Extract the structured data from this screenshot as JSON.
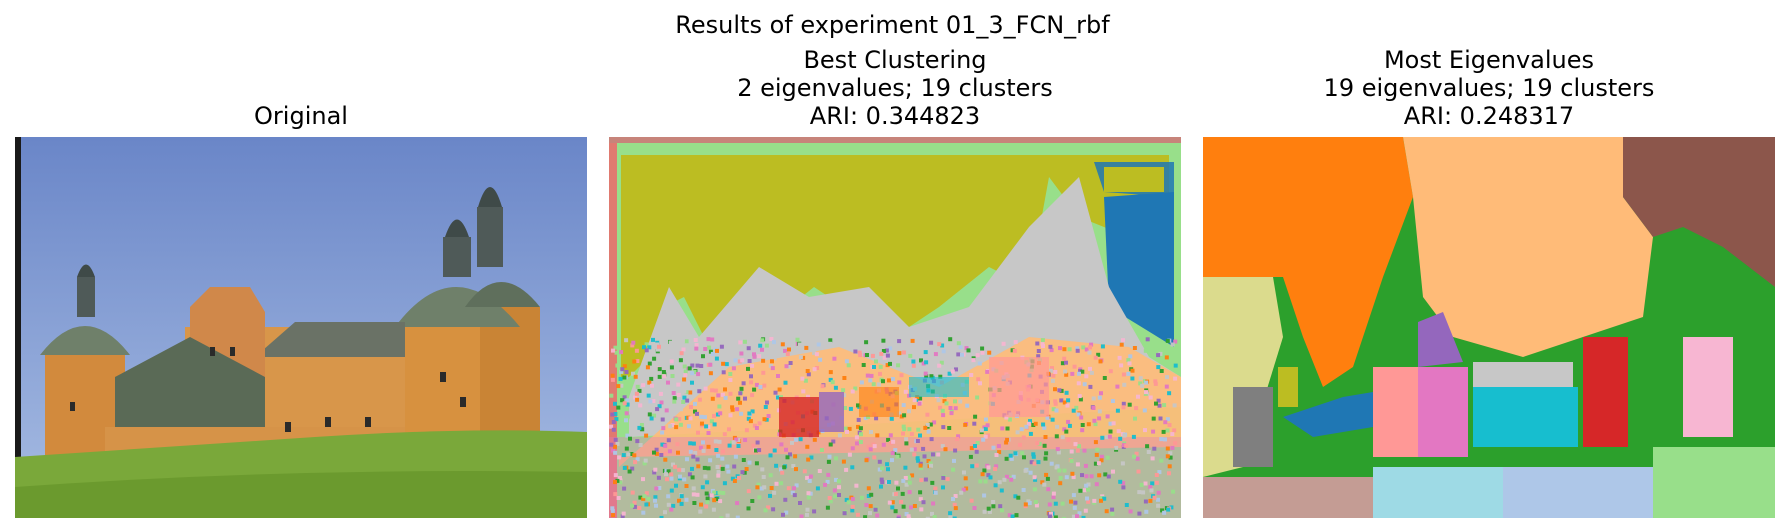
{
  "figure": {
    "suptitle": "Results of experiment 01_3_FCN_rbf"
  },
  "panels": [
    {
      "title_lines": [
        "Original"
      ],
      "image": "photo of a castle with orange towers and green domes under blue sky on a grassy hill"
    },
    {
      "title_lines": [
        "Best Clustering",
        "2 eigenvalues; 19 clusters",
        "ARI: 0.344823"
      ],
      "image": "noisy color segmentation map of the castle photo"
    },
    {
      "title_lines": [
        "Most Eigenvalues",
        "19 eigenvalues; 19 clusters",
        "ARI: 0.248317"
      ],
      "image": "blocky color segmentation map of the castle photo"
    }
  ],
  "colors": {
    "sky": "#7090cc",
    "wall": "#d7913f",
    "roof": "#6f806a",
    "grass": "#7aa83a",
    "olive": "#bcbd22",
    "gray": "#c7c7c7",
    "blue": "#1f77b4",
    "orange": "#ff7f0e",
    "light_orange": "#ffbb78",
    "brown": "#8c564b",
    "green": "#2ca02c",
    "light_green": "#98df8a",
    "red": "#d62728",
    "pink": "#e377c2",
    "light_pink": "#f7b6d2",
    "salmon": "#ff9896",
    "purple": "#9467bd",
    "cyan": "#17becf",
    "light_cyan": "#9edae5",
    "light_blue": "#aec7e8",
    "khaki": "#dbdb8d",
    "tan": "#c49c94",
    "dark_gray": "#7f7f7f"
  }
}
